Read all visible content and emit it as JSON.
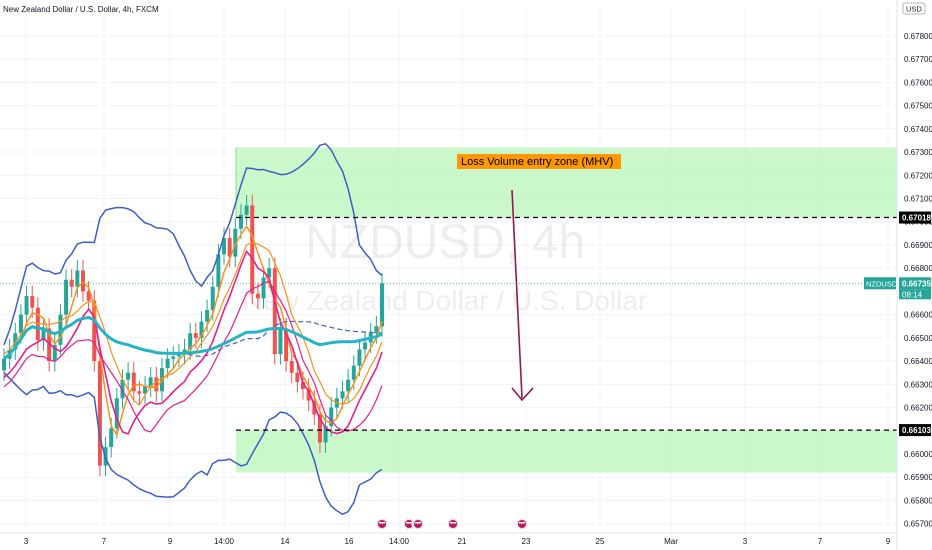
{
  "chart_data": {
    "type": "candlestick",
    "title": "New Zealand Dollar / U.S. Dollar, 4h, FXCM",
    "watermark_symbol": "NZDUSD, 4h",
    "watermark_name": "New Zealand Dollar / U.S. Dollar",
    "currency": "USD",
    "y_range": [
      0.6566,
      0.6792
    ],
    "y_ticks": [
      "0.67800",
      "0.67700",
      "0.67600",
      "0.67500",
      "0.67400",
      "0.67300",
      "0.67200",
      "0.67100",
      "0.67000",
      "0.66900",
      "0.66800",
      "0.66600",
      "0.66500",
      "0.66400",
      "0.66300",
      "0.66200",
      "0.66000",
      "0.65900",
      "0.65800",
      "0.65700"
    ],
    "x_ticks": [
      "3",
      "7",
      "9",
      "14:00",
      "14",
      "16",
      "14:00",
      "21",
      "23",
      "25",
      "Mar",
      "3",
      "7",
      "9"
    ],
    "price_labels": {
      "upper_level": "0.67018",
      "current_symbol": "NZDUSD",
      "current_price": "0.66735",
      "countdown": "08:14",
      "lower_level": "0.66103"
    },
    "annotation": "Loss Volume entry zone (MHV)",
    "zones": [
      {
        "name": "upper-zone",
        "y_top": 0.6732,
        "y_bottom": 0.67018
      },
      {
        "name": "lower-zone",
        "y_top": 0.66103,
        "y_bottom": 0.6592
      }
    ],
    "levels": [
      0.67018,
      0.66103
    ],
    "colors": {
      "up": "#26a69a",
      "down": "#ef5350",
      "zone": "#b9f5b9",
      "bollinger": "#3d5ec9",
      "ma_orange": "#f7931a",
      "ma_pink": "#e91e8c",
      "ma_teal": "#25b4c5",
      "arrow": "#8e1b4d",
      "label_bg": "#ff9800",
      "current": "#26a69a"
    },
    "series": [
      {
        "name": "price",
        "close": [
          0.6641,
          0.6645,
          0.6652,
          0.666,
          0.6668,
          0.6663,
          0.6649,
          0.6654,
          0.664,
          0.6647,
          0.666,
          0.6675,
          0.6672,
          0.6679,
          0.667,
          0.6666,
          0.664,
          0.6595,
          0.6603,
          0.6611,
          0.6624,
          0.6632,
          0.6635,
          0.6627,
          0.6626,
          0.6629,
          0.6633,
          0.6627,
          0.6637,
          0.6641,
          0.6642,
          0.6643,
          0.6645,
          0.6652,
          0.665,
          0.6657,
          0.6662,
          0.6672,
          0.6686,
          0.6693,
          0.6685,
          0.6697,
          0.6703,
          0.6707,
          0.6669,
          0.6667,
          0.6676,
          0.668,
          0.6643,
          0.6654,
          0.664,
          0.6635,
          0.6631,
          0.6628,
          0.6623,
          0.6617,
          0.6605,
          0.6612,
          0.662,
          0.6624,
          0.6627,
          0.6632,
          0.6638,
          0.6645,
          0.6648,
          0.6652,
          0.6655,
          0.66735
        ]
      }
    ]
  }
}
